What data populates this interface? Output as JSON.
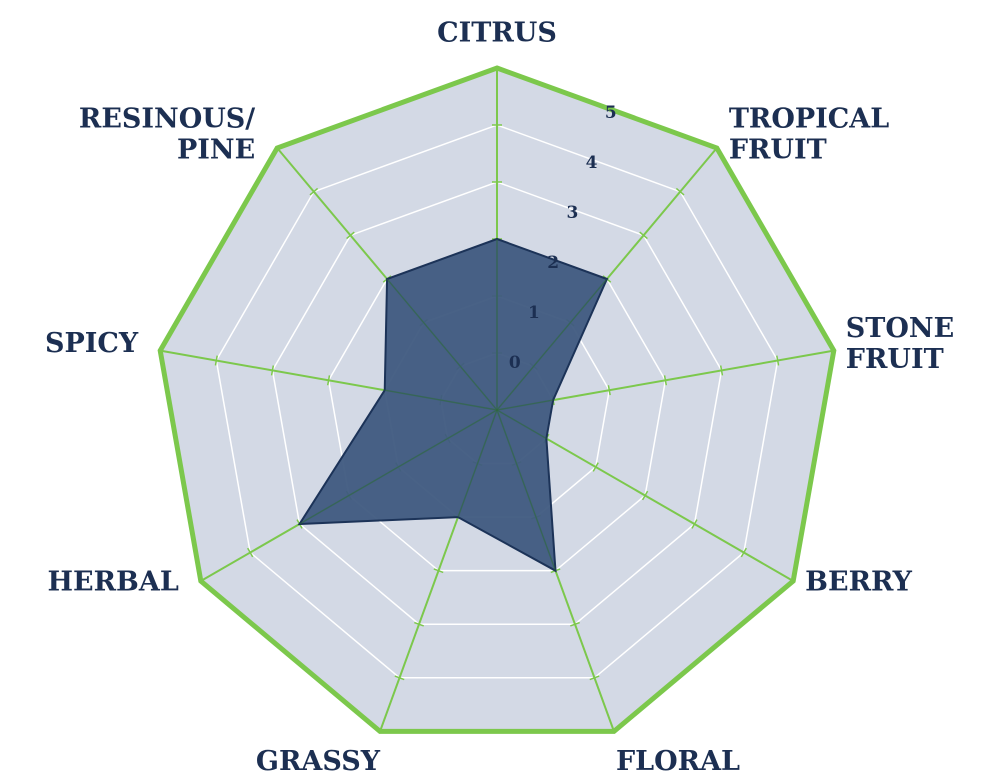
{
  "chart_data": {
    "type": "radar",
    "categories": [
      "CITRUS",
      "TROPICAL FRUIT",
      "STONE FRUIT",
      "BERRY",
      "FLORAL",
      "GRASSY",
      "HERBAL",
      "SPICY",
      "RESINOUS/ PINE"
    ],
    "values": [
      2,
      2,
      0,
      0,
      2,
      1,
      3,
      1,
      2
    ],
    "color": "#3f5a80",
    "edge_color": "#1c3358",
    "axis_color": "#7cc84c",
    "panel_color": "#d3d9e5",
    "ylim": [
      -1,
      5
    ],
    "yticks": [
      0,
      1,
      2,
      3,
      4,
      5
    ],
    "grid": true
  }
}
